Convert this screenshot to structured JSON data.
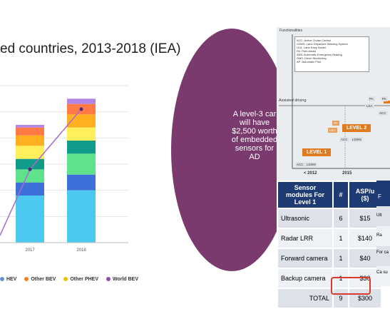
{
  "chart_section": {
    "title": "ed countries, 2013-2018 (IEA)",
    "legend": [
      {
        "label": "HEV",
        "color": "#6a8fd1"
      },
      {
        "label": "Other BEV",
        "color": "#f5821f"
      },
      {
        "label": "Other PHEV",
        "color": "#f0c000"
      },
      {
        "label": "World BEV",
        "color": "#8b4fb3"
      }
    ]
  },
  "chart_data": {
    "type": "bar",
    "categories": [
      "2017",
      "2018"
    ],
    "series_colors": [
      "#4cc9f0",
      "#3f6fd8",
      "#5fe38a",
      "#109b8a",
      "#ffef5a",
      "#ffb020",
      "#ff7a45",
      "#b185e6"
    ],
    "stacks": [
      [
        0.18,
        0.05,
        0.05,
        0.04,
        0.05,
        0.04,
        0.03,
        0.01
      ],
      [
        0.2,
        0.06,
        0.08,
        0.05,
        0.05,
        0.05,
        0.04,
        0.02
      ]
    ],
    "line": {
      "values": [
        0.28,
        0.51
      ],
      "color": "#a86bd1"
    },
    "ylim": [
      0,
      0.6
    ]
  },
  "sensor_section": {
    "bubble_text": "A level-3 car will have $2,500 worth of embedded sensors for AD",
    "diagram": {
      "title": "Functionalities",
      "legend_lines": [
        "ACC: Active Cruise Control",
        "LDWS: Lane Departure Warning System",
        "LKA: Lane Keep Assist",
        "PA: Park Assist",
        "AEB: Automatic Emergency Braking",
        "DMS: Driver Monitoring",
        "AP: Automatic Pilot"
      ],
      "assisted": "Assisted driving",
      "level1": "LEVEL 1",
      "level2": "LEVEL 2",
      "year1": "< 2012",
      "year2": "2015",
      "tags": [
        "PA",
        "LKA",
        "ACC",
        "LDWS",
        "ACC",
        "LDWS",
        "PA",
        "LKA",
        "ACC",
        "PA"
      ]
    },
    "table": {
      "headers": [
        "Sensor modules For Level 1",
        "#",
        "ASP/u ($)"
      ],
      "rows": [
        [
          "Ultrasonic",
          "6",
          "$15"
        ],
        [
          "Radar LRR",
          "1",
          "$140"
        ],
        [
          "Forward camera",
          "1",
          "$40"
        ],
        [
          "Backup camera",
          "1",
          "$30"
        ],
        [
          "TOTAL",
          "9",
          "$300"
        ]
      ]
    },
    "table2_partial": [
      "F",
      "Ult",
      "Ra",
      "For ca",
      "Ca su"
    ]
  }
}
